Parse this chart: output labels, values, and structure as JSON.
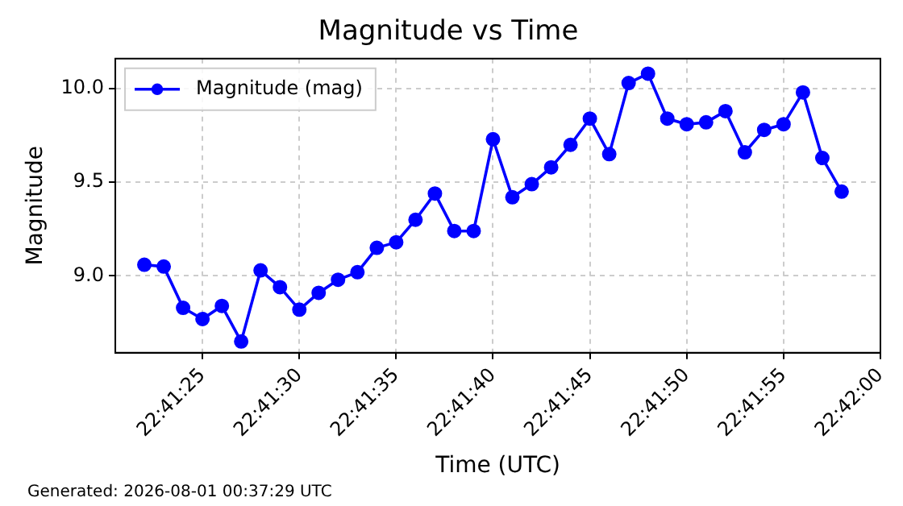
{
  "chart_data": {
    "type": "line",
    "title": "Magnitude vs Time",
    "xlabel": "Time (UTC)",
    "ylabel": "Magnitude",
    "x": [
      22.689444,
      22.689722,
      22.69,
      22.690278,
      22.690556,
      22.690833,
      22.691111,
      22.691389,
      22.691667,
      22.691944,
      22.692222,
      22.6925,
      22.692778,
      22.693056,
      22.693333,
      22.693611,
      22.693889,
      22.694167,
      22.694444,
      22.694722,
      22.695,
      22.695278,
      22.695556,
      22.695833,
      22.696111,
      22.696389,
      22.696667,
      22.696944,
      22.697222,
      22.6975,
      22.697778,
      22.698056,
      22.698333,
      22.698611,
      22.698889,
      22.699167,
      22.699444
    ],
    "series": [
      {
        "name": "Magnitude (mag)",
        "color": "#0000ff",
        "values": [
          9.06,
          9.05,
          8.83,
          8.77,
          8.84,
          8.65,
          9.03,
          8.94,
          8.82,
          8.91,
          8.98,
          9.02,
          9.15,
          9.18,
          9.3,
          9.44,
          9.24,
          9.24,
          9.73,
          9.42,
          9.49,
          9.58,
          9.7,
          9.84,
          9.65,
          10.03,
          10.08,
          9.84,
          9.81,
          9.82,
          9.88,
          9.66,
          9.78,
          9.81,
          9.98,
          9.63,
          9.45
        ]
      }
    ],
    "xlim": [
      22.689028,
      22.7
    ],
    "xticks": [
      {
        "value": 22.690278,
        "label": "22:41:25"
      },
      {
        "value": 22.691667,
        "label": "22:41:30"
      },
      {
        "value": 22.693056,
        "label": "22:41:35"
      },
      {
        "value": 22.694444,
        "label": "22:41:40"
      },
      {
        "value": 22.695833,
        "label": "22:41:45"
      },
      {
        "value": 22.697222,
        "label": "22:41:50"
      },
      {
        "value": 22.698611,
        "label": "22:41:55"
      },
      {
        "value": 22.7,
        "label": "22:42:00"
      }
    ],
    "ylim": [
      8.59,
      10.16
    ],
    "yticks": [
      {
        "value": 9.0,
        "label": "9.0"
      },
      {
        "value": 9.5,
        "label": "9.5"
      },
      {
        "value": 10.0,
        "label": "10.0"
      }
    ],
    "grid": true,
    "legend": "top left",
    "marker": "circle",
    "line_style": "solid",
    "annotations": [
      "Generated: 2026-08-01 00:37:29 UTC"
    ]
  }
}
